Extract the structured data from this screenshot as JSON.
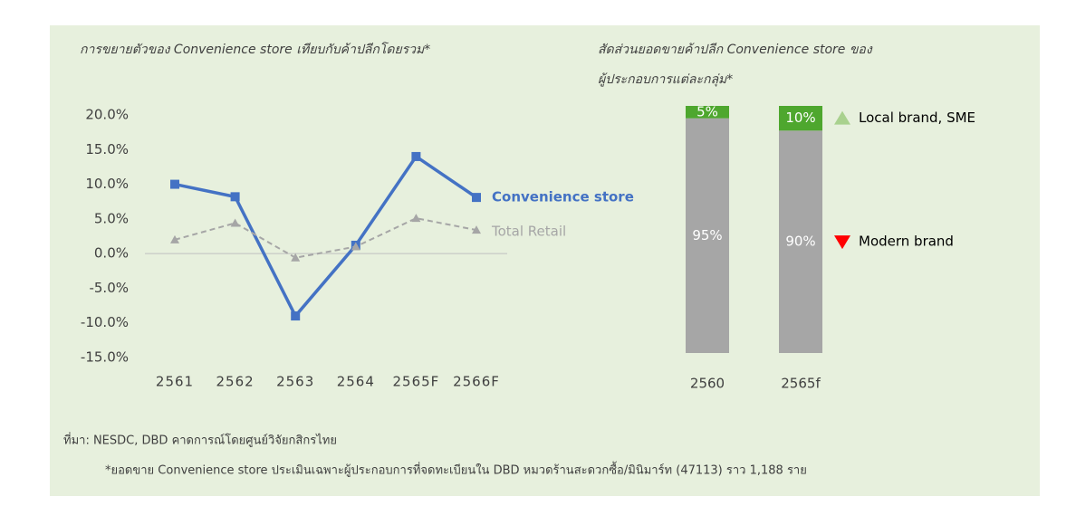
{
  "chart_data": [
    {
      "type": "line",
      "title": "การขยายตัวของ Convenience store เทียบกับค้าปลีกโดยรวม*",
      "categories": [
        "2561",
        "2562",
        "2563",
        "2564",
        "2565F",
        "2566F"
      ],
      "series": [
        {
          "name": "Convenience store",
          "color": "#4472c4",
          "dashed": false,
          "marker": "square",
          "values": [
            10,
            8.2,
            -9,
            1.2,
            14,
            8.1
          ]
        },
        {
          "name": "Total Retail",
          "color": "#a6a6a6",
          "dashed": true,
          "marker": "triangle",
          "values": [
            2,
            4.4,
            -0.6,
            1,
            5.1,
            3.4
          ]
        }
      ],
      "ylim": [
        -15,
        20
      ],
      "yticks": [
        {
          "value": 20,
          "label": "20.0%"
        },
        {
          "value": 15,
          "label": "15.0%"
        },
        {
          "value": 10,
          "label": "10.0%"
        },
        {
          "value": 5,
          "label": "5.0%"
        },
        {
          "value": 0,
          "label": "0.0%"
        },
        {
          "value": -5,
          "label": "-5.0%"
        },
        {
          "value": -10,
          "label": "-10.0%"
        },
        {
          "value": -15,
          "label": "-15.0%"
        }
      ]
    },
    {
      "type": "stacked_bar",
      "title": [
        "สัดส่วนยอดขายค้าปลีก Convenience store ของ",
        "ผู้ประกอบการแต่ละกลุ่ม*"
      ],
      "categories": [
        "2560",
        "2565f"
      ],
      "series": [
        {
          "name": "Modern brand",
          "color": "#a6a6a6",
          "marker_color": "#ff0000",
          "marker": "triangle-down",
          "values": [
            95,
            90
          ],
          "value_labels": [
            "95%",
            "90%"
          ]
        },
        {
          "name": "Local brand, SME",
          "color": "#4ea72e",
          "marker_color": "#a9d18e",
          "marker": "triangle-up",
          "values": [
            5,
            10
          ],
          "value_labels": [
            "5%",
            "10%"
          ]
        }
      ],
      "ylim": [
        0,
        100
      ]
    }
  ],
  "source": "ที่มา: NESDC, DBD คาดการณ์โดยศูนย์วิจัยกสิกรไทย",
  "note": "*ยอดขาย Convenience store ประเมินเฉพาะผู้ประกอบการที่จดทะเบียนใน DBD หมวดร้านสะดวกซื้อ/มินิมาร์ท (47113) ราว 1,188 ราย"
}
